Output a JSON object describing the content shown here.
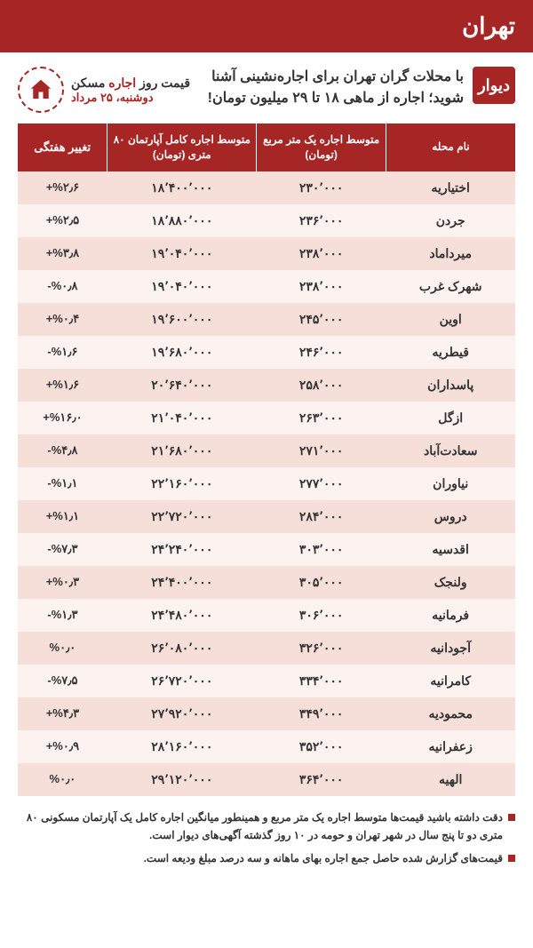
{
  "colors": {
    "primary": "#a62626",
    "row_odd": "#f5dfd8",
    "row_even": "#fcf3f0",
    "text": "#333333",
    "white": "#ffffff"
  },
  "header": {
    "city": "تهران"
  },
  "logo": {
    "text": "دیوار"
  },
  "headline": "با محلات گران تهران برای اجاره‌نشینی آشنا شوید؛ اجاره از ماهی ۱۸ تا ۲۹ میلیون تومان!",
  "price_label": {
    "pre": "قیمت روز ",
    "accent": "اجاره",
    "post": " مسکن"
  },
  "date": "دوشنبه، ۲۵ مرداد",
  "table": {
    "columns": {
      "name": "نام محله",
      "sqm": "متوسط اجاره یک متر مربع (تومان)",
      "full": "متوسط اجاره کامل آپارتمان ۸۰ متری (تومان)",
      "change": "تغییر هفتگی"
    },
    "rows": [
      {
        "name": "اختیاریه",
        "sqm": "۲۳۰٬۰۰۰",
        "full": "۱۸٬۴۰۰٬۰۰۰",
        "chg": "+%۲٫۶"
      },
      {
        "name": "جردن",
        "sqm": "۲۳۶٬۰۰۰",
        "full": "۱۸٬۸۸۰٬۰۰۰",
        "chg": "+%۲٫۵"
      },
      {
        "name": "میرداماد",
        "sqm": "۲۳۸٬۰۰۰",
        "full": "۱۹٬۰۴۰٬۰۰۰",
        "chg": "+%۳٫۸"
      },
      {
        "name": "شهرک غرب",
        "sqm": "۲۳۸٬۰۰۰",
        "full": "۱۹٬۰۴۰٬۰۰۰",
        "chg": "-%۰٫۸"
      },
      {
        "name": "اوین",
        "sqm": "۲۴۵٬۰۰۰",
        "full": "۱۹٬۶۰۰٬۰۰۰",
        "chg": "+%۰٫۴"
      },
      {
        "name": "قیطریه",
        "sqm": "۲۴۶٬۰۰۰",
        "full": "۱۹٬۶۸۰٬۰۰۰",
        "chg": "-%۱٫۶"
      },
      {
        "name": "پاسداران",
        "sqm": "۲۵۸٬۰۰۰",
        "full": "۲۰٬۶۴۰٬۰۰۰",
        "chg": "+%۱٫۶"
      },
      {
        "name": "ازگل",
        "sqm": "۲۶۳٬۰۰۰",
        "full": "۲۱٬۰۴۰٬۰۰۰",
        "chg": "+%۱۶٫۰"
      },
      {
        "name": "سعادت‌آباد",
        "sqm": "۲۷۱٬۰۰۰",
        "full": "۲۱٬۶۸۰٬۰۰۰",
        "chg": "-%۴٫۸"
      },
      {
        "name": "نیاوران",
        "sqm": "۲۷۷٬۰۰۰",
        "full": "۲۲٬۱۶۰٬۰۰۰",
        "chg": "-%۱٫۱"
      },
      {
        "name": "دروس",
        "sqm": "۲۸۴٬۰۰۰",
        "full": "۲۲٬۷۲۰٬۰۰۰",
        "chg": "+%۱٫۱"
      },
      {
        "name": "اقدسیه",
        "sqm": "۳۰۳٬۰۰۰",
        "full": "۲۴٬۲۴۰٬۰۰۰",
        "chg": "-%۷٫۳"
      },
      {
        "name": "ولنجک",
        "sqm": "۳۰۵٬۰۰۰",
        "full": "۲۴٬۴۰۰٬۰۰۰",
        "chg": "+%۰٫۳"
      },
      {
        "name": "فرمانیه",
        "sqm": "۳۰۶٬۰۰۰",
        "full": "۲۴٬۴۸۰٬۰۰۰",
        "chg": "-%۱٫۳"
      },
      {
        "name": "آجودانیه",
        "sqm": "۳۲۶٬۰۰۰",
        "full": "۲۶٬۰۸۰٬۰۰۰",
        "chg": "%۰٫۰"
      },
      {
        "name": "کامرانیه",
        "sqm": "۳۳۴٬۰۰۰",
        "full": "۲۶٬۷۲۰٬۰۰۰",
        "chg": "-%۷٫۵"
      },
      {
        "name": "محمودیه",
        "sqm": "۳۴۹٬۰۰۰",
        "full": "۲۷٬۹۲۰٬۰۰۰",
        "chg": "+%۴٫۳"
      },
      {
        "name": "زعفرانیه",
        "sqm": "۳۵۲٬۰۰۰",
        "full": "۲۸٬۱۶۰٬۰۰۰",
        "chg": "+%۰٫۹"
      },
      {
        "name": "الهیه",
        "sqm": "۳۶۴٬۰۰۰",
        "full": "۲۹٬۱۲۰٬۰۰۰",
        "chg": "%۰٫۰"
      }
    ]
  },
  "footnotes": [
    "دقت داشته باشید قیمت‌ها متوسط اجاره یک متر مربع و همینطور میانگین اجاره کامل یک آپارتمان مسکونی ۸۰ متری دو تا پنج سال در شهر تهران و حومه در ۱۰ روز گذشته آگهی‌های دیوار است.",
    "قیمت‌های گزارش شده حاصل جمع اجاره بهای ماهانه و سه درصد مبلغ ودیعه است."
  ]
}
